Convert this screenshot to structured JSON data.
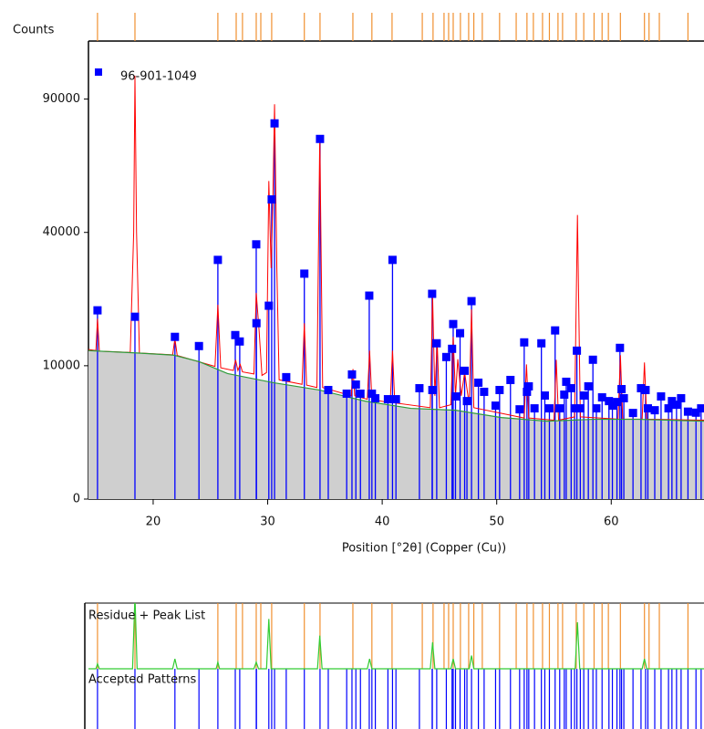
{
  "chart_data": {
    "type": "xrd",
    "ylabel": "Counts",
    "xlabel": "Position [°2θ] (Copper (Cu))",
    "xlim": [
      14.35,
      68.1
    ],
    "xticks": [
      20,
      30,
      40,
      50,
      60
    ],
    "ylim": [
      0,
      118000
    ],
    "yticks": [
      0,
      10000,
      40000,
      90000
    ],
    "yscale": "sqrt",
    "observed": {
      "color": "#ff0000",
      "x": [
        14.35,
        15.0,
        15.14,
        15.3,
        18.0,
        18.3,
        18.41,
        18.55,
        18.8,
        21.7,
        21.9,
        22.1,
        25.4,
        25.65,
        25.9,
        27.0,
        27.2,
        27.4,
        27.6,
        27.8,
        28.8,
        29.0,
        29.25,
        29.5,
        29.9,
        30.1,
        30.3,
        30.45,
        30.6,
        30.8,
        31.0,
        33.0,
        33.2,
        33.4,
        34.3,
        34.55,
        34.8,
        37.3,
        37.45,
        37.6,
        38.7,
        38.9,
        39.1,
        40.7,
        40.9,
        41.1,
        44.2,
        44.4,
        44.6,
        44.8,
        45.0,
        46.0,
        46.2,
        46.4,
        46.6,
        46.9,
        47.2,
        47.6,
        47.8,
        48.0,
        52.4,
        52.6,
        52.8,
        55.0,
        55.2,
        55.4,
        56.8,
        57.05,
        57.3,
        60.6,
        60.8,
        61.0,
        62.7,
        62.9,
        63.1,
        68.1
      ],
      "values": [
        12600,
        12400,
        18300,
        12300,
        12100,
        40000,
        100800,
        40000,
        12000,
        11700,
        14470,
        11600,
        9900,
        21230,
        9700,
        9300,
        10900,
        9300,
        10200,
        9100,
        8800,
        23900,
        16000,
        8600,
        9000,
        56900,
        30000,
        50000,
        87700,
        30000,
        8000,
        7400,
        17400,
        7300,
        7000,
        74400,
        7000,
        6000,
        9500,
        6000,
        5600,
        12390,
        5600,
        5200,
        12390,
        5200,
        4700,
        23280,
        6000,
        13970,
        4700,
        5000,
        14800,
        6000,
        11000,
        6000,
        9000,
        5000,
        20240,
        4700,
        3700,
        10200,
        3700,
        3500,
        10900,
        3500,
        3800,
        45400,
        3800,
        3600,
        11640,
        3600,
        3600,
        10490,
        3600,
        3500
      ]
    },
    "background": {
      "color": "#2e9b3a",
      "fill": "#cfcfcf",
      "x": [
        14.35,
        18.6,
        21.8,
        24.0,
        26.5,
        30.5,
        34.5,
        38.5,
        42.5,
        46.4,
        50.4,
        54.4,
        58.4,
        62.4,
        68.1
      ],
      "values": [
        12400,
        12000,
        11650,
        10630,
        8860,
        7620,
        6690,
        5400,
        4630,
        4440,
        3740,
        3410,
        3580,
        3580,
        3410
      ]
    },
    "reference_pattern": {
      "name": "96-901-1049",
      "color": "#0000ff",
      "x": [
        15.14,
        18.41,
        21.9,
        24.0,
        25.65,
        27.17,
        27.56,
        29.0,
        29.02,
        30.1,
        30.35,
        30.6,
        31.62,
        33.2,
        34.57,
        35.29,
        36.9,
        37.36,
        37.7,
        38.1,
        38.87,
        39.1,
        39.4,
        40.5,
        40.9,
        41.2,
        43.25,
        44.36,
        44.38,
        44.76,
        45.6,
        46.1,
        46.2,
        46.4,
        46.8,
        47.2,
        47.4,
        47.8,
        48.4,
        48.9,
        49.9,
        50.25,
        51.2,
        52.0,
        52.4,
        52.64,
        52.8,
        53.3,
        53.9,
        54.2,
        54.6,
        55.1,
        55.5,
        55.9,
        56.07,
        56.5,
        56.8,
        57.0,
        57.3,
        57.6,
        58.0,
        58.4,
        58.7,
        59.2,
        59.8,
        60.1,
        60.5,
        60.76,
        60.9,
        61.1,
        61.9,
        62.6,
        63.0,
        63.2,
        63.8,
        64.35,
        65.0,
        65.3,
        65.7,
        66.1,
        66.7,
        67.4,
        67.85
      ],
      "values": [
        20040,
        18700,
        14800,
        13170,
        32180,
        15130,
        13970,
        36500,
        17400,
        21030,
        50500,
        79400,
        8360,
        28580,
        72960,
        6690,
        6250,
        8740,
        7380,
        6250,
        23280,
        6250,
        5715,
        5610,
        32180,
        5610,
        6915,
        23700,
        6690,
        13650,
        11350,
        12700,
        17230,
        5925,
        15480,
        9260,
        5400,
        22040,
        7620,
        6470,
        4910,
        6690,
        7980,
        4530,
        13810,
        6470,
        7150,
        4630,
        13650,
        6030,
        4630,
        16000,
        4630,
        6140,
        7740,
        6915,
        4630,
        12390,
        4630,
        6030,
        7150,
        10920,
        4630,
        5820,
        5400,
        4910,
        5300,
        12860,
        6800,
        5720,
        4170,
        6915,
        6690,
        4630,
        4440,
        5925,
        4630,
        5400,
        5000,
        5720,
        4300,
        4200,
        4630
      ]
    },
    "peak_list": {
      "color": "#f09030",
      "x": [
        15.14,
        18.41,
        25.65,
        27.25,
        27.8,
        29.0,
        29.4,
        30.35,
        33.2,
        34.57,
        37.44,
        39.1,
        40.86,
        43.5,
        44.44,
        45.4,
        45.8,
        46.2,
        46.83,
        47.55,
        48.0,
        48.74,
        50.25,
        51.7,
        52.64,
        53.2,
        54.0,
        54.6,
        55.35,
        55.75,
        56.94,
        57.6,
        58.5,
        59.2,
        59.75,
        60.8,
        62.9,
        63.3,
        64.2,
        66.7
      ]
    },
    "residue_title": "Residue + Peak List",
    "accepted_title": "Accepted Patterns",
    "residue": {
      "color": "#33cc33",
      "x": [
        14.35,
        15.0,
        15.14,
        15.3,
        18.2,
        18.41,
        18.6,
        21.7,
        21.9,
        22.1,
        25.5,
        25.65,
        25.8,
        28.8,
        29.0,
        29.2,
        29.9,
        30.1,
        30.3,
        34.35,
        34.55,
        34.75,
        38.7,
        38.9,
        39.1,
        44.2,
        44.4,
        44.6,
        46.0,
        46.2,
        46.4,
        47.6,
        47.8,
        48.0,
        56.85,
        57.05,
        57.25,
        62.7,
        62.9,
        63.1,
        68.1
      ],
      "values": [
        0,
        0,
        1500,
        0,
        0,
        22000,
        0,
        0,
        3000,
        0,
        0,
        2000,
        0,
        0,
        2000,
        0,
        0,
        15000,
        0,
        0,
        10000,
        0,
        0,
        3000,
        0,
        0,
        8000,
        0,
        0,
        3000,
        0,
        0,
        4000,
        0,
        0,
        14000,
        0,
        0,
        3000,
        0,
        0
      ]
    }
  }
}
